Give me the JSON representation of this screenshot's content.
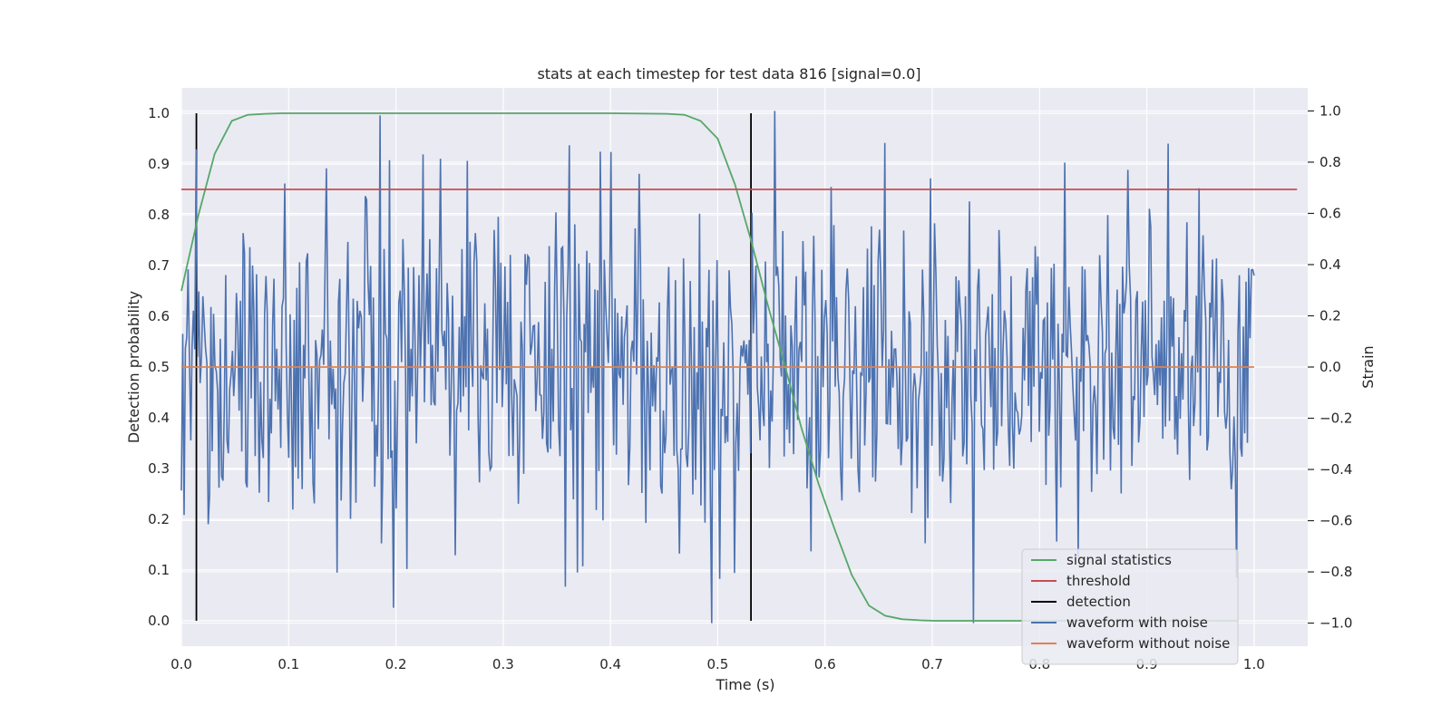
{
  "chart_data": {
    "type": "line",
    "title": "stats at each timestep for test data 816 [signal=0.0]",
    "xlabel": "Time (s)",
    "ylabel_left": "Detection probability",
    "ylabel_right": "Strain",
    "xlim": [
      0.0,
      1.05
    ],
    "ylim_left": [
      -0.05,
      1.05
    ],
    "ylim_right": [
      -1.09,
      1.09
    ],
    "xticks": [
      "0.0",
      "0.1",
      "0.2",
      "0.3",
      "0.4",
      "0.5",
      "0.6",
      "0.7",
      "0.8",
      "0.9",
      "1.0"
    ],
    "yticks_left": [
      "0.0",
      "0.1",
      "0.2",
      "0.3",
      "0.4",
      "0.5",
      "0.6",
      "0.7",
      "0.8",
      "0.9",
      "1.0"
    ],
    "yticks_right": [
      "−1.0",
      "−0.8",
      "−0.6",
      "−0.4",
      "−0.2",
      "0.0",
      "0.2",
      "0.4",
      "0.6",
      "0.8",
      "1.0"
    ],
    "grid": true,
    "legend_position": "lower-right",
    "series": [
      {
        "name": "signal statistics",
        "axis": "left",
        "color": "#55a868",
        "x": [
          0.0,
          0.016,
          0.031,
          0.047,
          0.062,
          0.078,
          0.094,
          0.2,
          0.3,
          0.4,
          0.453,
          0.469,
          0.484,
          0.5,
          0.516,
          0.531,
          0.547,
          0.563,
          0.578,
          0.594,
          0.609,
          0.625,
          0.641,
          0.656,
          0.672,
          0.688,
          0.703,
          0.8,
          0.9,
          0.985
        ],
        "y": [
          0.65,
          0.8,
          0.92,
          0.985,
          0.997,
          0.999,
          1.0,
          1.0,
          1.0,
          1.0,
          0.999,
          0.997,
          0.985,
          0.95,
          0.86,
          0.75,
          0.62,
          0.5,
          0.38,
          0.27,
          0.18,
          0.09,
          0.03,
          0.01,
          0.003,
          0.001,
          0.0,
          0.0,
          0.0,
          0.0
        ]
      },
      {
        "name": "threshold",
        "axis": "left",
        "color": "#c44e52",
        "x": [
          0.0,
          1.04
        ],
        "y": [
          0.85,
          0.85
        ]
      },
      {
        "name": "detection",
        "axis": "left",
        "color": "#000000",
        "segments": [
          {
            "x": 0.014,
            "y0": 0.0,
            "y1": 1.0
          },
          {
            "x": 0.531,
            "y0": 0.0,
            "y1": 1.0
          }
        ]
      },
      {
        "name": "waveform with noise",
        "axis": "right",
        "color": "#4c72b0",
        "x_range": [
          0.0,
          1.0
        ],
        "points": 800,
        "y_range": [
          -1.0,
          1.0
        ],
        "note_peaks": [
          {
            "x": 0.014,
            "y": 0.85
          },
          {
            "x": 0.198,
            "y": -0.94
          },
          {
            "x": 0.4,
            "y": 0.84
          },
          {
            "x": 0.553,
            "y": 1.0
          },
          {
            "x": 0.739,
            "y": -1.0
          },
          {
            "x": 0.882,
            "y": 0.77
          },
          {
            "x": 0.999,
            "y": 0.38
          }
        ]
      },
      {
        "name": "waveform without noise",
        "axis": "right",
        "color": "#dd8452",
        "x": [
          0.0,
          1.0
        ],
        "y": [
          0.0,
          0.0
        ]
      }
    ]
  }
}
